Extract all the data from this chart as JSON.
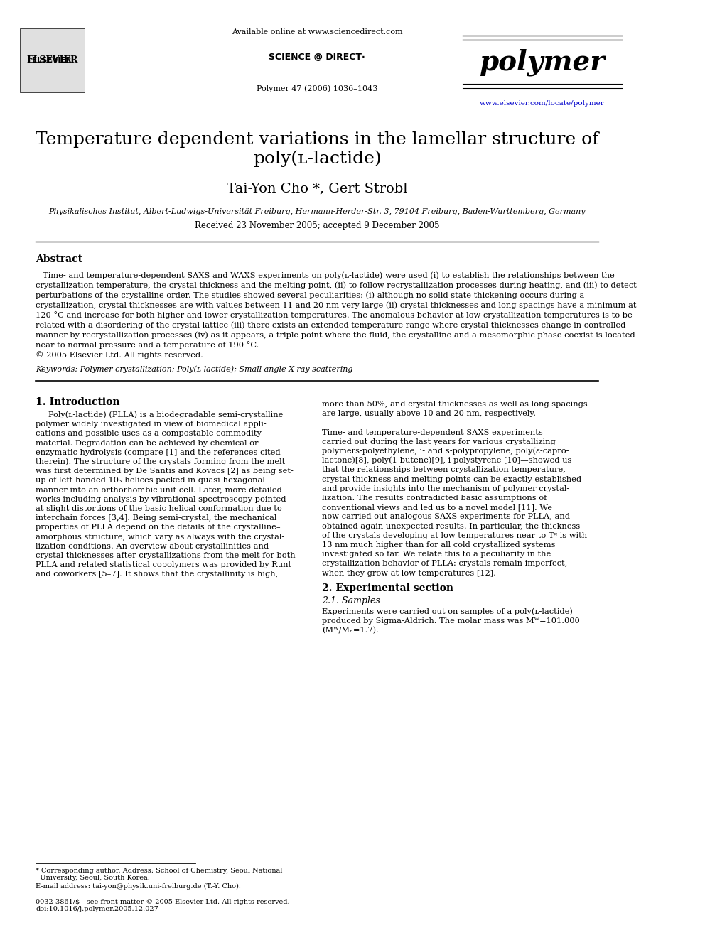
{
  "bg_color": "#ffffff",
  "page_title": "Temperature dependent variations in the lamellar structure of poly(ʟ-lactide)",
  "authors": "Tai-Yon Cho *, Gert Strobl",
  "affiliation": "Physikalisches Institut, Albert-Ludwigs-Universität Freiburg, Hermann-Herder-Str. 3, 79104 Freiburg, Baden-Wurttemberg, Germany",
  "received": "Received 23 November 2005; accepted 9 December 2005",
  "journal_name": "polymer",
  "journal_ref": "Polymer 47 (2006) 1036–1043",
  "available_online": "Available online at www.sciencedirect.com",
  "journal_url": "www.elsevier.com/locate/polymer",
  "abstract_title": "Abstract",
  "abstract_text": "Time- and temperature-dependent SAXS and WAXS experiments on poly(ʟ-lactide) were used (i) to establish the relationships between the crystallization temperature, the crystal thickness and the melting point, (ii) to follow recrystallization processes during heating, and (iii) to detect perturbations of the crystalline order. The studies showed several peculiarities: (i) although no solid state thickening occurs during a crystallization, crystal thicknesses are with values between 11 and 20 nm very large (ii) crystal thicknesses and long spacings have a minimum at 120 °C and increase for both higher and lower crystallization temperatures. The anomalous behavior at low crystallization temperatures is to be related with a disordering of the crystal lattice (iii) there exists an extended temperature range where crystal thicknesses change in controlled manner by recrystallization processes (iv) as it appears, a triple point where the fluid, the crystalline and a mesomorphic phase coexist is located near to normal pressure and a temperature of 190 °C.\n© 2005 Elsevier Ltd. All rights reserved.",
  "keywords": "Keywords: Polymer crystallization; Poly(ʟ-lactide); Small angle X-ray scattering",
  "section1_title": "1. Introduction",
  "section1_col1": "Poly(ʟ-lactide) (PLLA) is a biodegradable semi-crystalline polymer widely investigated in view of biomedical applications and possible uses as a compostable commodity material. Degradation can be achieved by chemical or enzymatic hydrolysis (compare [1] and the references cited therein). The structure of the crystals forming from the melt was first determined by De Santis and Kovacs [2] as being set-up of left-handed 10₃-helices packed in quasi-hexagonal manner into an orthorhombic unit cell. Later, more detailed works including analysis by vibrational spectroscopy pointed at slight distortions of the basic helical conformation due to interchain forces [3,4]. Being semi-crystal, the mechanical properties of PLLA depend on the details of the crystalline–amorphous structure, which vary as always with the crystallization conditions. An overview about crystallinities and crystal thicknesses after crystallizations from the melt for both PLLA and related statistical copolymers was provided by Runt and coworkers [5–7]. It shows that the crystallinity is high,",
  "section1_col2": "more than 50%, and crystal thicknesses as well as long spacings are large, usually above 10 and 20 nm, respectively.\n\nTime- and temperature-dependent SAXS experiments carried out during the last years for various crystallizing polymers-polyethylene, i- and s-polypropylene, poly(ε-caprolactone)[8], poly(1-butene)[9], i-polystyrene [10]—showed us that the relationships between crystallization temperature, crystal thickness and melting points can be exactly established and provide insights into the mechanism of polymer crystallization. The results contradicted basic assumptions of conventional views and led us to a novel model [11]. We now carried out analogous SAXS experiments for PLLA, and obtained again unexpected results. In particular, the thickness of the crystals developing at low temperatures near to Tᵍ is with 13 nm much higher than for all cold crystallized systems investigated so far. We relate this to a peculiarity in the crystallization behavior of PLLA: crystals remain imperfect, when they grow at low temperatures [12].",
  "section2_title": "2. Experimental section",
  "section21_title": "2.1. Samples",
  "section21_text": "Experiments were carried out on samples of a poly(ʟ-lactide) produced by Sigma-Aldrich. The molar mass was Mᵂ=101.000 (Mᵂ/Mₙ=1.7).",
  "footnote1": "* Corresponding author. Address: School of Chemistry, Seoul National\nUniversity, Seoul, South Korea.",
  "footnote2": "E-mail address: tai-yon@physik.uni-freiburg.de (T.-Y. Cho).",
  "footnote3": "0032-3861/$ - see front matter © 2005 Elsevier Ltd. All rights reserved.\ndoi:10.1016/j.polymer.2005.12.027"
}
